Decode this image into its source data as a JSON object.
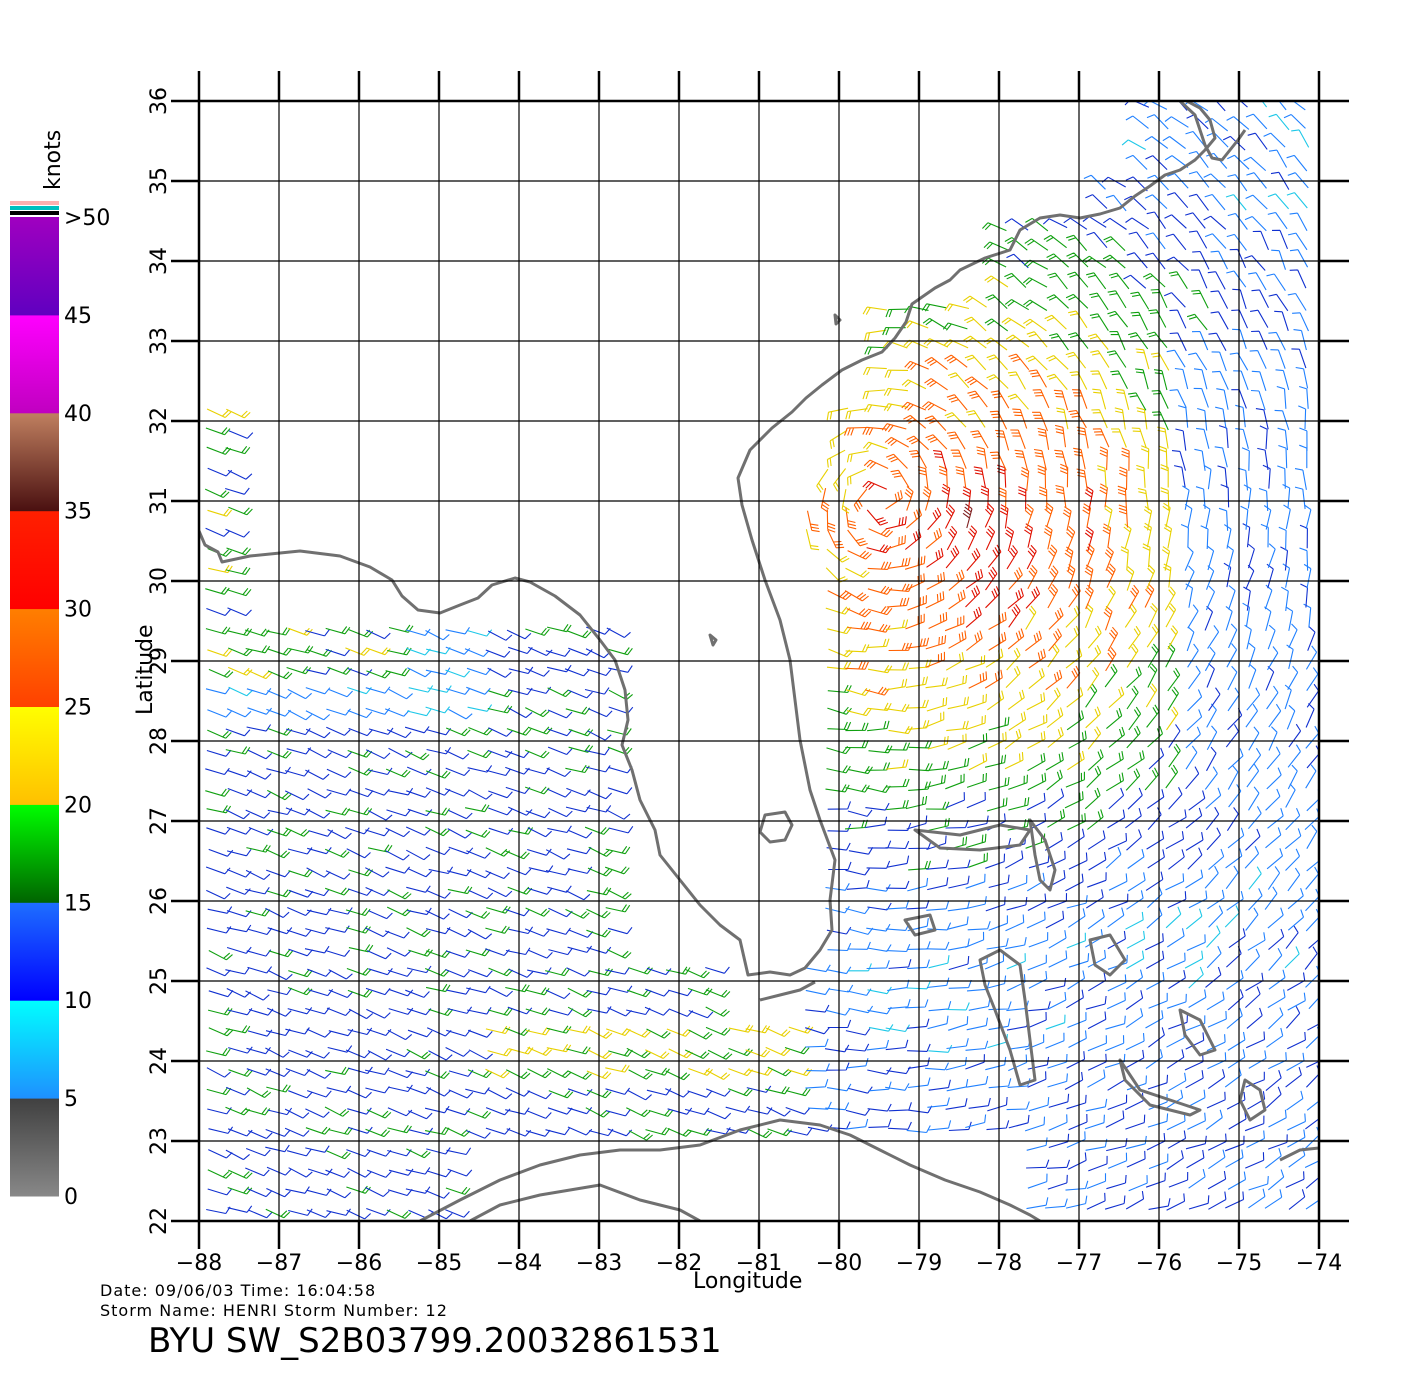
{
  "axes": {
    "xlabel": "Longitude",
    "ylabel": "Latitude",
    "x_ticks": [
      "−88",
      "−87",
      "−86",
      "−85",
      "−84",
      "−83",
      "−82",
      "−81",
      "−80",
      "−79",
      "−78",
      "−77",
      "−76",
      "−75",
      "−74"
    ],
    "y_ticks": [
      "22",
      "23",
      "24",
      "25",
      "26",
      "27",
      "28",
      "29",
      "30",
      "31",
      "32",
      "33",
      "34",
      "35",
      "36"
    ],
    "xlim": [
      -88,
      -74
    ],
    "ylim": [
      22,
      36
    ],
    "grid": true
  },
  "colorbar": {
    "unit": "knots",
    "labels": [
      "0",
      "5",
      "10",
      "15",
      "20",
      "25",
      "30",
      "35",
      "40",
      "45",
      ">50"
    ],
    "bands": [
      {
        "from": 0,
        "to": 5,
        "top": "#404040",
        "bottom": "#888888"
      },
      {
        "from": 5,
        "to": 10,
        "top": "#00ffff",
        "bottom": "#1e90ff"
      },
      {
        "from": 10,
        "to": 15,
        "top": "#1e6fff",
        "bottom": "#0000ff"
      },
      {
        "from": 15,
        "to": 20,
        "top": "#00ff00",
        "bottom": "#006400"
      },
      {
        "from": 20,
        "to": 25,
        "top": "#ffff00",
        "bottom": "#ffc000"
      },
      {
        "from": 25,
        "to": 30,
        "top": "#ff7f00",
        "bottom": "#ff4000"
      },
      {
        "from": 30,
        "to": 35,
        "top": "#ff2000",
        "bottom": "#ff0000"
      },
      {
        "from": 35,
        "to": 40,
        "top": "#c08060",
        "bottom": "#4a1010"
      },
      {
        "from": 40,
        "to": 45,
        "top": "#ff00ff",
        "bottom": "#c000c0"
      },
      {
        "from": 45,
        "to": 50,
        "top": "#a000c0",
        "bottom": "#6000c0"
      }
    ],
    "top_strips": [
      "#ffb0b0",
      "#00c0c0",
      "#000000"
    ]
  },
  "info": {
    "line1": "Date: 09/06/03   Time: 16:04:58",
    "line2": "Storm Name: HENRI   Storm Number: 12",
    "product": "BYU SW_S2B03799.20032861531"
  },
  "colors": {
    "coast": "#707070",
    "grid": "#000000"
  }
}
